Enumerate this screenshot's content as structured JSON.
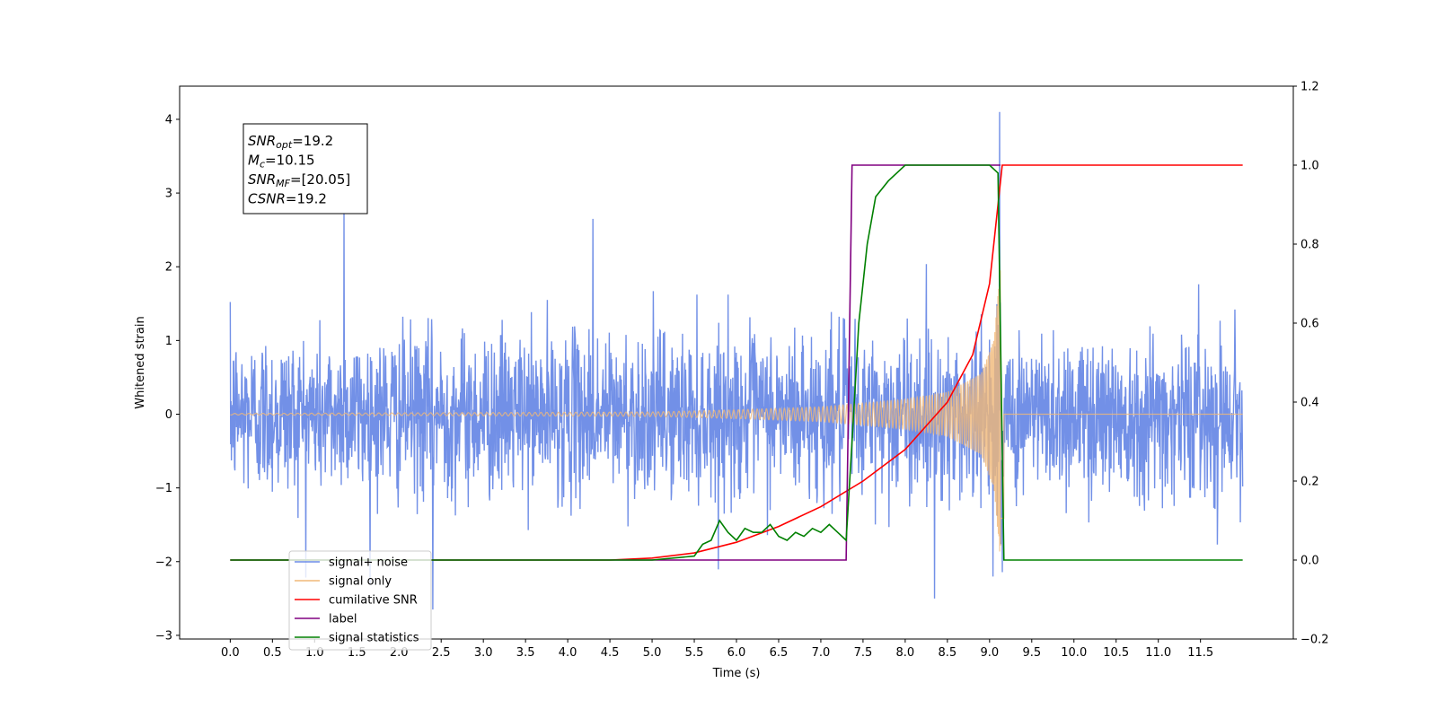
{
  "chart_data": {
    "type": "line",
    "xlabel": "Time (s)",
    "ylabel": "Whitened strain",
    "xlim": [
      -0.6,
      12.6
    ],
    "ylim": [
      -3.05,
      4.45
    ],
    "y2lim": [
      -0.2,
      1.2
    ],
    "grid": false,
    "legend_position": "lower-left",
    "x_ticks": [
      0.0,
      0.5,
      1.0,
      1.5,
      2.0,
      2.5,
      3.0,
      3.5,
      4.0,
      4.5,
      5.0,
      5.5,
      6.0,
      6.5,
      7.0,
      7.5,
      8.0,
      8.5,
      9.0,
      9.5,
      10.0,
      10.5,
      11.0,
      11.5
    ],
    "x_tick_labels": [
      "0.0",
      "0.5",
      "1.0",
      "1.5",
      "2.0",
      "2.5",
      "3.0",
      "3.5",
      "4.0",
      "4.5",
      "5.0",
      "5.5",
      "6.0",
      "6.5",
      "7.0",
      "7.5",
      "8.0",
      "8.5",
      "9.0",
      "9.5",
      "10.0",
      "10.5",
      "11.0",
      "11.5"
    ],
    "y_ticks": [
      -3,
      -2,
      -1,
      0,
      1,
      2,
      3,
      4
    ],
    "y_tick_labels": [
      "−3",
      "−2",
      "−1",
      "0",
      "1",
      "2",
      "3",
      "4"
    ],
    "y2_ticks": [
      -0.2,
      0.0,
      0.2,
      0.4,
      0.6,
      0.8,
      1.0,
      1.2
    ],
    "y2_tick_labels": [
      "−0.2",
      "0.0",
      "0.2",
      "0.4",
      "0.6",
      "0.8",
      "1.0",
      "1.2"
    ],
    "annotation": {
      "lines": [
        {
          "sym": "SNR",
          "sub": "opt",
          "val": "=19.2"
        },
        {
          "sym": "M",
          "sub": "c",
          "val": "=10.15"
        },
        {
          "sym": "SNR",
          "sub": "MF",
          "val": "=[20.05]"
        },
        {
          "sym": "CSNR",
          "sub": "",
          "val": "=19.2"
        }
      ]
    },
    "series": [
      {
        "name": "signal+ noise",
        "color": "#6a8ae6",
        "axis": "left",
        "kind": "noise",
        "x_range": [
          0.0,
          12.0
        ],
        "typical_amplitude": 1.2,
        "notable_peaks": [
          {
            "x": 1.35,
            "y": 2.75
          },
          {
            "x": 4.3,
            "y": 2.65
          },
          {
            "x": 9.12,
            "y": 4.1
          },
          {
            "x": 2.4,
            "y": -2.65
          },
          {
            "x": 8.35,
            "y": -2.5
          }
        ]
      },
      {
        "name": "signal only",
        "color": "#f0b878",
        "axis": "left",
        "kind": "chirp",
        "x_range": [
          0.0,
          12.0
        ],
        "merger_time": 9.13,
        "peak_amplitude": 2.0,
        "envelope": [
          [
            0.0,
            0.01
          ],
          [
            5.0,
            0.03
          ],
          [
            6.0,
            0.06
          ],
          [
            7.0,
            0.1
          ],
          [
            8.0,
            0.2
          ],
          [
            8.5,
            0.3
          ],
          [
            8.9,
            0.55
          ],
          [
            9.05,
            1.0
          ],
          [
            9.13,
            2.0
          ]
        ]
      },
      {
        "name": "cumilative SNR",
        "color": "#ff0000",
        "axis": "right",
        "points": [
          [
            0.0,
            0.0
          ],
          [
            4.5,
            0.0
          ],
          [
            5.0,
            0.005
          ],
          [
            5.5,
            0.018
          ],
          [
            6.0,
            0.045
          ],
          [
            6.5,
            0.085
          ],
          [
            7.0,
            0.135
          ],
          [
            7.5,
            0.2
          ],
          [
            8.0,
            0.28
          ],
          [
            8.5,
            0.4
          ],
          [
            8.8,
            0.52
          ],
          [
            9.0,
            0.7
          ],
          [
            9.1,
            0.9
          ],
          [
            9.15,
            1.0
          ],
          [
            12.0,
            1.0
          ]
        ]
      },
      {
        "name": "label",
        "color": "#800080",
        "axis": "right",
        "points": [
          [
            0.0,
            0.0
          ],
          [
            7.3,
            0.0
          ],
          [
            7.37,
            1.0
          ],
          [
            9.13,
            1.0
          ],
          [
            9.13,
            1.0
          ]
        ]
      },
      {
        "name": "signal statistics",
        "color": "#008000",
        "axis": "right",
        "points": [
          [
            0.0,
            0.0
          ],
          [
            5.0,
            0.0
          ],
          [
            5.5,
            0.01
          ],
          [
            5.6,
            0.04
          ],
          [
            5.7,
            0.05
          ],
          [
            5.8,
            0.1
          ],
          [
            5.9,
            0.07
          ],
          [
            6.0,
            0.05
          ],
          [
            6.1,
            0.08
          ],
          [
            6.2,
            0.07
          ],
          [
            6.3,
            0.07
          ],
          [
            6.4,
            0.09
          ],
          [
            6.5,
            0.06
          ],
          [
            6.6,
            0.05
          ],
          [
            6.7,
            0.07
          ],
          [
            6.8,
            0.06
          ],
          [
            6.9,
            0.08
          ],
          [
            7.0,
            0.07
          ],
          [
            7.1,
            0.09
          ],
          [
            7.2,
            0.07
          ],
          [
            7.3,
            0.05
          ],
          [
            7.37,
            0.3
          ],
          [
            7.45,
            0.6
          ],
          [
            7.55,
            0.8
          ],
          [
            7.65,
            0.92
          ],
          [
            7.8,
            0.96
          ],
          [
            8.0,
            1.0
          ],
          [
            9.0,
            1.0
          ],
          [
            9.1,
            0.98
          ],
          [
            9.17,
            0.0
          ],
          [
            12.0,
            0.0
          ]
        ]
      }
    ]
  }
}
